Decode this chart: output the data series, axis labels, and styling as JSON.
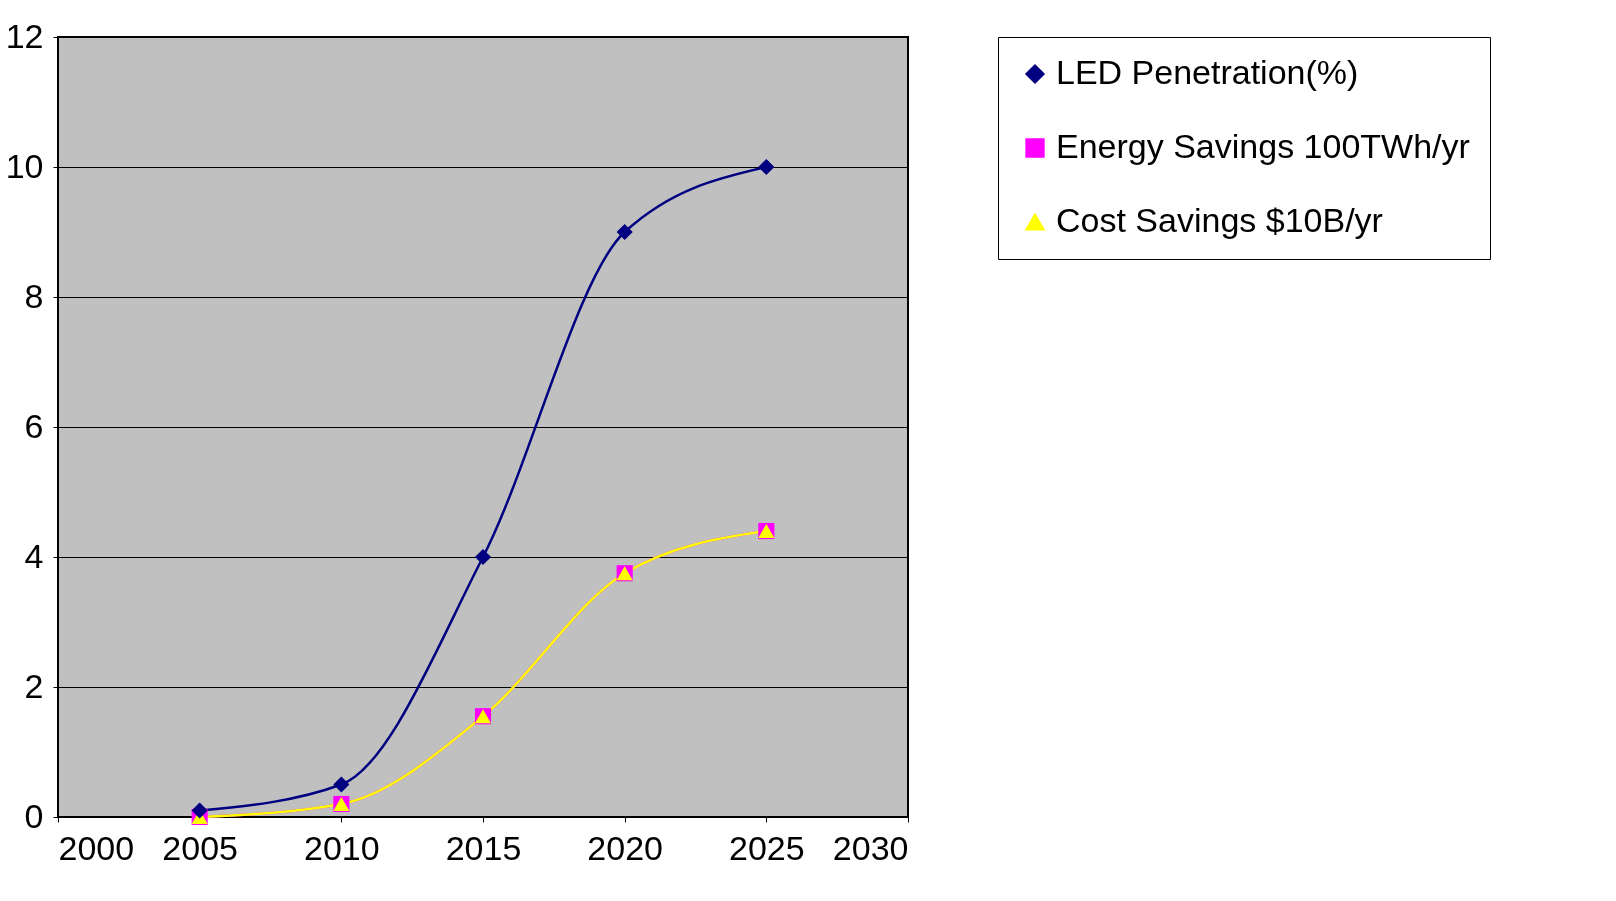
{
  "chart_data": {
    "type": "line",
    "x": [
      2005,
      2010,
      2015,
      2020,
      2025
    ],
    "series": [
      {
        "name": "LED Penetration(%)",
        "color": "#000080",
        "marker": "diamond",
        "values": [
          0.1,
          0.5,
          4,
          9,
          10
        ]
      },
      {
        "name": "Energy Savings 100TWh/yr",
        "color": "#ff00ff",
        "marker": "square",
        "values": [
          0,
          0.2,
          1.55,
          3.75,
          4.4
        ]
      },
      {
        "name": "Cost Savings $10B/yr",
        "color": "#ffff00",
        "marker": "triangle",
        "values": [
          0,
          0.2,
          1.55,
          3.75,
          4.4
        ]
      }
    ],
    "xlim": [
      2000,
      2030
    ],
    "xticks": [
      2000,
      2005,
      2010,
      2015,
      2020,
      2025,
      2030
    ],
    "ylim": [
      0,
      12
    ],
    "yticks": [
      0,
      2,
      4,
      6,
      8,
      10,
      12
    ],
    "grid": "y",
    "legend": "right",
    "line_style": "solid"
  }
}
